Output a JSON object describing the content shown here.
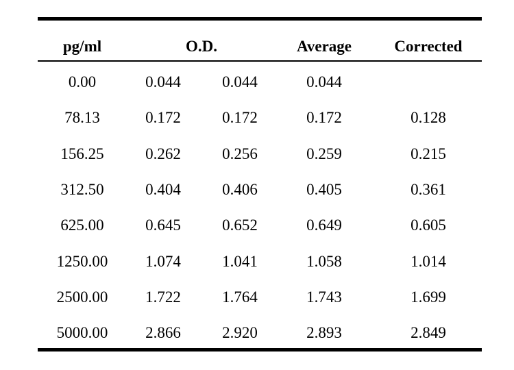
{
  "table": {
    "headers": {
      "conc": "pg/ml",
      "od": "O.D.",
      "average": "Average",
      "corrected": "Corrected"
    },
    "rows": [
      {
        "conc": "0.00",
        "od1": "0.044",
        "od2": "0.044",
        "avg": "0.044",
        "corr": ""
      },
      {
        "conc": "78.13",
        "od1": "0.172",
        "od2": "0.172",
        "avg": "0.172",
        "corr": "0.128"
      },
      {
        "conc": "156.25",
        "od1": "0.262",
        "od2": "0.256",
        "avg": "0.259",
        "corr": "0.215"
      },
      {
        "conc": "312.50",
        "od1": "0.404",
        "od2": "0.406",
        "avg": "0.405",
        "corr": "0.361"
      },
      {
        "conc": "625.00",
        "od1": "0.645",
        "od2": "0.652",
        "avg": "0.649",
        "corr": "0.605"
      },
      {
        "conc": "1250.00",
        "od1": "1.074",
        "od2": "1.041",
        "avg": "1.058",
        "corr": "1.014"
      },
      {
        "conc": "2500.00",
        "od1": "1.722",
        "od2": "1.764",
        "avg": "1.743",
        "corr": "1.699"
      },
      {
        "conc": "5000.00",
        "od1": "2.866",
        "od2": "2.920",
        "avg": "2.893",
        "corr": "2.849"
      }
    ]
  }
}
